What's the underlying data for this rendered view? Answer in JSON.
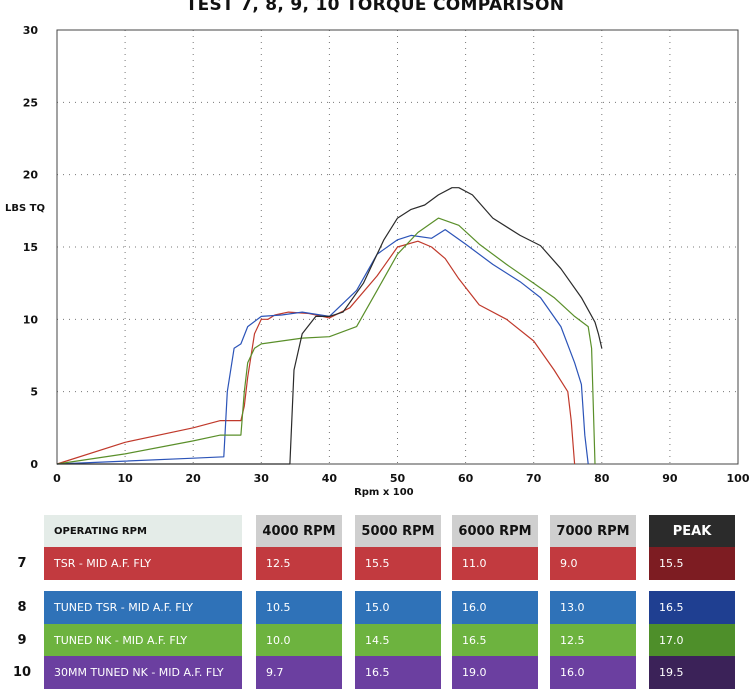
{
  "chart_data": {
    "type": "line",
    "title": "TEST 7, 8, 9, 10 TORQUE COMPARISON",
    "xlabel": "Rpm x 100",
    "ylabel": "LBS TQ",
    "xlim": [
      0,
      100
    ],
    "ylim": [
      0,
      30
    ],
    "x_ticks": [
      0,
      10,
      20,
      30,
      40,
      50,
      60,
      70,
      80,
      90,
      100
    ],
    "y_ticks": [
      0,
      5,
      10,
      15,
      20,
      25,
      30
    ],
    "grid": true,
    "series": [
      {
        "color": "#c0392b",
        "x": [
          0,
          10,
          20,
          24,
          27,
          27.5,
          28,
          29,
          30,
          31,
          32,
          34,
          37,
          40,
          43,
          47,
          50,
          53,
          55,
          57,
          59,
          62,
          66,
          70,
          73,
          75,
          75.5,
          76
        ],
        "y": [
          0,
          1.5,
          2.5,
          3,
          3,
          4,
          6,
          9,
          10,
          10,
          10.3,
          10.5,
          10.4,
          10.1,
          10.8,
          13,
          15,
          15.4,
          15,
          14.2,
          12.8,
          11,
          10,
          8.5,
          6.5,
          5,
          3,
          0
        ]
      },
      {
        "color": "#2c54b8",
        "x": [
          0,
          10,
          20,
          24.5,
          25,
          26,
          27,
          28,
          30,
          33,
          36,
          40,
          44,
          47,
          50,
          52,
          55,
          57,
          60,
          64,
          68,
          71,
          74,
          76,
          77,
          77.5,
          78
        ],
        "y": [
          0,
          0.2,
          0.4,
          0.5,
          5,
          8,
          8.3,
          9.5,
          10.2,
          10.3,
          10.5,
          10.2,
          12,
          14.5,
          15.5,
          15.8,
          15.6,
          16.2,
          15.2,
          13.8,
          12.6,
          11.5,
          9.5,
          7,
          5.5,
          2,
          0
        ]
      },
      {
        "color": "#5a8f2a",
        "x": [
          0,
          10,
          20,
          24,
          27,
          27.5,
          28,
          29,
          30,
          33,
          36,
          40,
          44,
          47,
          50,
          53,
          56,
          59,
          62,
          66,
          70,
          73,
          76,
          78,
          78.5,
          79
        ],
        "y": [
          0,
          0.7,
          1.6,
          2,
          2,
          5,
          7,
          8,
          8.3,
          8.5,
          8.7,
          8.8,
          9.5,
          12,
          14.5,
          16,
          17,
          16.5,
          15.2,
          13.8,
          12.5,
          11.5,
          10.2,
          9.5,
          8,
          0
        ]
      },
      {
        "color": "#2b2b2b",
        "x": [
          0,
          10,
          20,
          30,
          33,
          34.2,
          34.8,
          36,
          38,
          40,
          42,
          45,
          48,
          50,
          52,
          54,
          56,
          58,
          59,
          61,
          64,
          68,
          71,
          74,
          77,
          79,
          79.5,
          80
        ],
        "y": [
          0,
          0,
          0,
          0,
          0,
          0,
          6.5,
          9,
          10.2,
          10.2,
          10.5,
          12.5,
          15.5,
          17,
          17.6,
          17.9,
          18.6,
          19.1,
          19.1,
          18.6,
          17,
          15.8,
          15.1,
          13.5,
          11.5,
          9.8,
          9,
          8
        ]
      }
    ],
    "table": {
      "header_label": "OPERATING RPM",
      "columns": [
        "4000 RPM",
        "5000 RPM",
        "6000 RPM",
        "7000 RPM",
        "PEAK"
      ],
      "rows": [
        {
          "num": "7",
          "label": "TSR - MID A.F. FLY",
          "values": [
            "12.5",
            "15.5",
            "11.0",
            "9.0",
            "15.5"
          ],
          "color": "#c23a3f",
          "peak_color": "#7d1c22"
        },
        {
          "num": "8",
          "label": "TUNED  TSR - MID A.F. FLY",
          "values": [
            "10.5",
            "15.0",
            "16.0",
            "13.0",
            "16.5"
          ],
          "color": "#2f72b8",
          "peak_color": "#1f3f91"
        },
        {
          "num": "9",
          "label": "TUNED  NK - MID A.F. FLY",
          "values": [
            "10.0",
            "14.5",
            "16.5",
            "12.5",
            "17.0"
          ],
          "color": "#6db33f",
          "peak_color": "#4e8f2a"
        },
        {
          "num": "10",
          "label": "30MM TUNED  NK - MID A.F. FLY",
          "values": [
            "9.7",
            "16.5",
            "19.0",
            "16.0",
            "19.5"
          ],
          "color": "#6b3fa0",
          "peak_color": "#3b2258"
        }
      ]
    }
  }
}
